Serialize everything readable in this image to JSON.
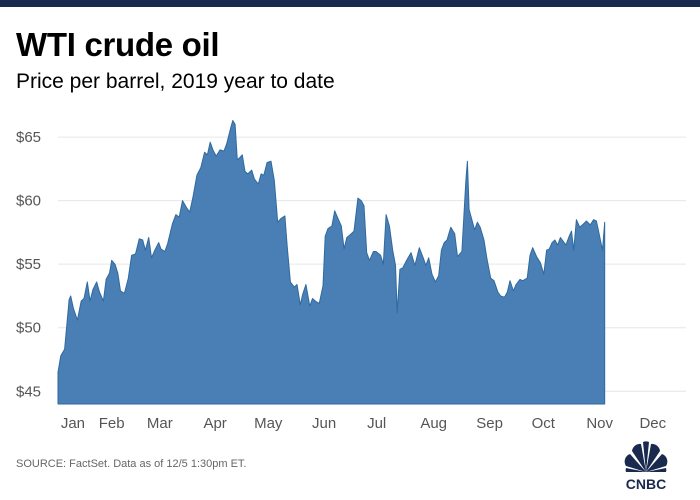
{
  "header": {
    "title": "WTI crude oil",
    "subtitle": "Price per barrel, 2019 year to date"
  },
  "footer": {
    "source": "SOURCE: FactSet. Data as of 12/5 1:30pm ET."
  },
  "logo": {
    "text": "CNBC",
    "icon": "peacock-icon"
  },
  "colors": {
    "area_fill": "#4a7fb5",
    "area_stroke": "#2f6a9e",
    "grid": "#e6e6e6",
    "top_bar": "#1a2a4e"
  },
  "chart_data": {
    "type": "area",
    "title": "WTI crude oil",
    "subtitle": "Price per barrel, 2019 year to date",
    "xlabel": "",
    "ylabel": "",
    "ylim": [
      44,
      66.5
    ],
    "xlim": [
      0,
      11.35
    ],
    "grid": true,
    "legend": "none",
    "yticks": [
      {
        "value": 45,
        "label": "$45"
      },
      {
        "value": 50,
        "label": "$50"
      },
      {
        "value": 55,
        "label": "$55"
      },
      {
        "value": 60,
        "label": "$60"
      },
      {
        "value": 65,
        "label": "$65"
      }
    ],
    "xticks": [
      {
        "value": 0.27,
        "label": "Jan"
      },
      {
        "value": 0.97,
        "label": "Feb"
      },
      {
        "value": 1.84,
        "label": "Mar"
      },
      {
        "value": 2.84,
        "label": "Apr"
      },
      {
        "value": 3.8,
        "label": "May"
      },
      {
        "value": 4.81,
        "label": "Jun"
      },
      {
        "value": 5.76,
        "label": "Jul"
      },
      {
        "value": 6.79,
        "label": "Aug"
      },
      {
        "value": 7.8,
        "label": "Sep"
      },
      {
        "value": 8.77,
        "label": "Oct"
      },
      {
        "value": 9.79,
        "label": "Nov"
      },
      {
        "value": 10.75,
        "label": "Dec"
      }
    ],
    "series": [
      {
        "points": [
          [
            0.0,
            46.5
          ],
          [
            0.05,
            47.8
          ],
          [
            0.12,
            48.3
          ],
          [
            0.2,
            52.2
          ],
          [
            0.23,
            52.5
          ],
          [
            0.28,
            51.5
          ],
          [
            0.35,
            50.6
          ],
          [
            0.42,
            52.1
          ],
          [
            0.47,
            52.3
          ],
          [
            0.53,
            53.6
          ],
          [
            0.58,
            52.1
          ],
          [
            0.63,
            53.0
          ],
          [
            0.7,
            53.6
          ],
          [
            0.75,
            52.8
          ],
          [
            0.82,
            52.1
          ],
          [
            0.87,
            53.8
          ],
          [
            0.93,
            54.3
          ],
          [
            0.97,
            55.3
          ],
          [
            1.03,
            55.0
          ],
          [
            1.08,
            54.3
          ],
          [
            1.13,
            52.9
          ],
          [
            1.2,
            52.7
          ],
          [
            1.27,
            53.9
          ],
          [
            1.33,
            55.7
          ],
          [
            1.4,
            55.8
          ],
          [
            1.47,
            57.0
          ],
          [
            1.53,
            56.9
          ],
          [
            1.58,
            56.1
          ],
          [
            1.64,
            57.1
          ],
          [
            1.69,
            55.5
          ],
          [
            1.75,
            56.1
          ],
          [
            1.82,
            56.7
          ],
          [
            1.86,
            56.2
          ],
          [
            1.93,
            56.0
          ],
          [
            1.98,
            56.6
          ],
          [
            2.07,
            58.2
          ],
          [
            2.13,
            58.9
          ],
          [
            2.19,
            58.7
          ],
          [
            2.25,
            60.0
          ],
          [
            2.33,
            59.4
          ],
          [
            2.38,
            59.1
          ],
          [
            2.44,
            60.3
          ],
          [
            2.51,
            62.0
          ],
          [
            2.58,
            62.6
          ],
          [
            2.65,
            63.8
          ],
          [
            2.7,
            63.6
          ],
          [
            2.75,
            64.6
          ],
          [
            2.8,
            64.0
          ],
          [
            2.86,
            63.5
          ],
          [
            2.93,
            64.0
          ],
          [
            3.0,
            63.9
          ],
          [
            3.05,
            64.5
          ],
          [
            3.12,
            65.7
          ],
          [
            3.16,
            66.3
          ],
          [
            3.2,
            66.0
          ],
          [
            3.24,
            63.2
          ],
          [
            3.29,
            63.4
          ],
          [
            3.33,
            63.6
          ],
          [
            3.38,
            62.3
          ],
          [
            3.43,
            62.1
          ],
          [
            3.5,
            62.4
          ],
          [
            3.55,
            61.7
          ],
          [
            3.62,
            61.3
          ],
          [
            3.67,
            62.1
          ],
          [
            3.72,
            62.0
          ],
          [
            3.78,
            63.0
          ],
          [
            3.85,
            63.1
          ],
          [
            3.91,
            61.6
          ],
          [
            3.97,
            58.3
          ],
          [
            4.03,
            58.6
          ],
          [
            4.1,
            58.8
          ],
          [
            4.14,
            56.5
          ],
          [
            4.2,
            53.6
          ],
          [
            4.27,
            53.2
          ],
          [
            4.32,
            53.4
          ],
          [
            4.38,
            51.8
          ],
          [
            4.42,
            52.6
          ],
          [
            4.48,
            53.4
          ],
          [
            4.55,
            51.7
          ],
          [
            4.6,
            52.3
          ],
          [
            4.65,
            52.1
          ],
          [
            4.72,
            51.9
          ],
          [
            4.79,
            53.3
          ],
          [
            4.83,
            57.2
          ],
          [
            4.88,
            57.8
          ],
          [
            4.95,
            58.0
          ],
          [
            5.0,
            59.2
          ],
          [
            5.07,
            58.5
          ],
          [
            5.12,
            58.0
          ],
          [
            5.17,
            56.2
          ],
          [
            5.22,
            57.1
          ],
          [
            5.28,
            57.3
          ],
          [
            5.35,
            57.6
          ],
          [
            5.42,
            60.2
          ],
          [
            5.48,
            60.0
          ],
          [
            5.53,
            59.6
          ],
          [
            5.58,
            55.9
          ],
          [
            5.63,
            55.3
          ],
          [
            5.7,
            56.0
          ],
          [
            5.75,
            56.0
          ],
          [
            5.83,
            55.7
          ],
          [
            5.88,
            55.0
          ],
          [
            5.93,
            58.9
          ],
          [
            5.99,
            58.0
          ],
          [
            6.05,
            56.1
          ],
          [
            6.1,
            54.9
          ],
          [
            6.13,
            51.2
          ],
          [
            6.18,
            54.6
          ],
          [
            6.23,
            54.7
          ],
          [
            6.3,
            55.3
          ],
          [
            6.38,
            55.9
          ],
          [
            6.45,
            54.9
          ],
          [
            6.53,
            56.3
          ],
          [
            6.6,
            55.5
          ],
          [
            6.65,
            54.9
          ],
          [
            6.7,
            55.5
          ],
          [
            6.76,
            54.2
          ],
          [
            6.82,
            53.6
          ],
          [
            6.88,
            54.1
          ],
          [
            6.93,
            56.1
          ],
          [
            6.98,
            56.7
          ],
          [
            7.03,
            56.9
          ],
          [
            7.1,
            57.9
          ],
          [
            7.17,
            57.4
          ],
          [
            7.22,
            55.6
          ],
          [
            7.3,
            56.0
          ],
          [
            7.37,
            61.5
          ],
          [
            7.4,
            63.1
          ],
          [
            7.43,
            59.3
          ],
          [
            7.48,
            58.5
          ],
          [
            7.53,
            57.7
          ],
          [
            7.58,
            58.3
          ],
          [
            7.63,
            57.9
          ],
          [
            7.7,
            56.9
          ],
          [
            7.75,
            55.5
          ],
          [
            7.82,
            53.9
          ],
          [
            7.88,
            53.7
          ],
          [
            7.95,
            52.8
          ],
          [
            8.0,
            52.5
          ],
          [
            8.07,
            52.4
          ],
          [
            8.12,
            52.8
          ],
          [
            8.17,
            53.7
          ],
          [
            8.23,
            52.9
          ],
          [
            8.28,
            53.4
          ],
          [
            8.35,
            53.8
          ],
          [
            8.4,
            53.7
          ],
          [
            8.48,
            53.9
          ],
          [
            8.53,
            55.7
          ],
          [
            8.58,
            56.3
          ],
          [
            8.65,
            55.6
          ],
          [
            8.72,
            55.1
          ],
          [
            8.78,
            54.2
          ],
          [
            8.83,
            56.1
          ],
          [
            8.88,
            56.2
          ],
          [
            8.93,
            56.7
          ],
          [
            8.98,
            56.9
          ],
          [
            9.03,
            56.5
          ],
          [
            9.08,
            57.1
          ],
          [
            9.13,
            56.8
          ],
          [
            9.18,
            56.5
          ],
          [
            9.23,
            57.1
          ],
          [
            9.28,
            57.6
          ],
          [
            9.32,
            56.1
          ],
          [
            9.37,
            58.5
          ],
          [
            9.43,
            57.9
          ],
          [
            9.48,
            58.1
          ],
          [
            9.55,
            58.4
          ],
          [
            9.62,
            58.1
          ],
          [
            9.68,
            58.5
          ],
          [
            9.73,
            58.4
          ],
          [
            9.78,
            57.4
          ],
          [
            9.84,
            56.1
          ],
          [
            9.88,
            58.3
          ]
        ]
      }
    ]
  }
}
